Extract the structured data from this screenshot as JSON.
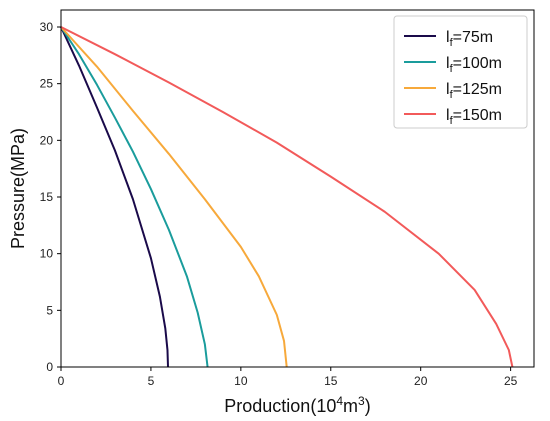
{
  "chart_data": {
    "type": "line",
    "title": "",
    "xlabel": "Production(10",
    "xlabel_sup": "4",
    "xlabel_mid": "m",
    "xlabel_sup2": "3",
    "xlabel_end": ")",
    "ylabel": "Pressure(MPa)",
    "xlim": [
      0,
      26.3
    ],
    "ylim": [
      0,
      31.5
    ],
    "xticks": [
      0,
      5,
      10,
      15,
      20,
      25
    ],
    "yticks": [
      0,
      5,
      10,
      15,
      20,
      25,
      30
    ],
    "grid": false,
    "legend_position": "top-right",
    "series": [
      {
        "name_main": "l",
        "name_sub": "f",
        "name_rest": "=75m",
        "color": "#1a0a4a",
        "points": [
          [
            0,
            30
          ],
          [
            1,
            26.6
          ],
          [
            2,
            22.9
          ],
          [
            3,
            19.1
          ],
          [
            4,
            14.8
          ],
          [
            5,
            9.6
          ],
          [
            5.5,
            6.2
          ],
          [
            5.8,
            3.4
          ],
          [
            5.92,
            1.5
          ],
          [
            5.95,
            0
          ]
        ]
      },
      {
        "name_main": "l",
        "name_sub": "f",
        "name_rest": "=100m",
        "color": "#1a9c9c",
        "points": [
          [
            0,
            30
          ],
          [
            1,
            27.6
          ],
          [
            2,
            24.9
          ],
          [
            3,
            22.0
          ],
          [
            4,
            19.0
          ],
          [
            5,
            15.7
          ],
          [
            6,
            12.1
          ],
          [
            7,
            8.0
          ],
          [
            7.6,
            4.8
          ],
          [
            8.0,
            2.0
          ],
          [
            8.15,
            0
          ]
        ]
      },
      {
        "name_main": "l",
        "name_sub": "f",
        "name_rest": "=125m",
        "color": "#f7a93b",
        "points": [
          [
            0,
            30
          ],
          [
            2,
            26.5
          ],
          [
            4,
            22.6
          ],
          [
            6,
            18.8
          ],
          [
            8,
            14.8
          ],
          [
            10,
            10.6
          ],
          [
            11,
            8.0
          ],
          [
            12,
            4.6
          ],
          [
            12.4,
            2.3
          ],
          [
            12.55,
            0
          ]
        ]
      },
      {
        "name_main": "l",
        "name_sub": "f",
        "name_rest": "=150m",
        "color": "#f25a5a",
        "points": [
          [
            0,
            30
          ],
          [
            3,
            27.6
          ],
          [
            6,
            25.1
          ],
          [
            9,
            22.5
          ],
          [
            12,
            19.8
          ],
          [
            15,
            16.8
          ],
          [
            18,
            13.7
          ],
          [
            21,
            10.0
          ],
          [
            23,
            6.8
          ],
          [
            24.2,
            3.8
          ],
          [
            24.9,
            1.5
          ],
          [
            25.1,
            0
          ]
        ]
      }
    ]
  }
}
